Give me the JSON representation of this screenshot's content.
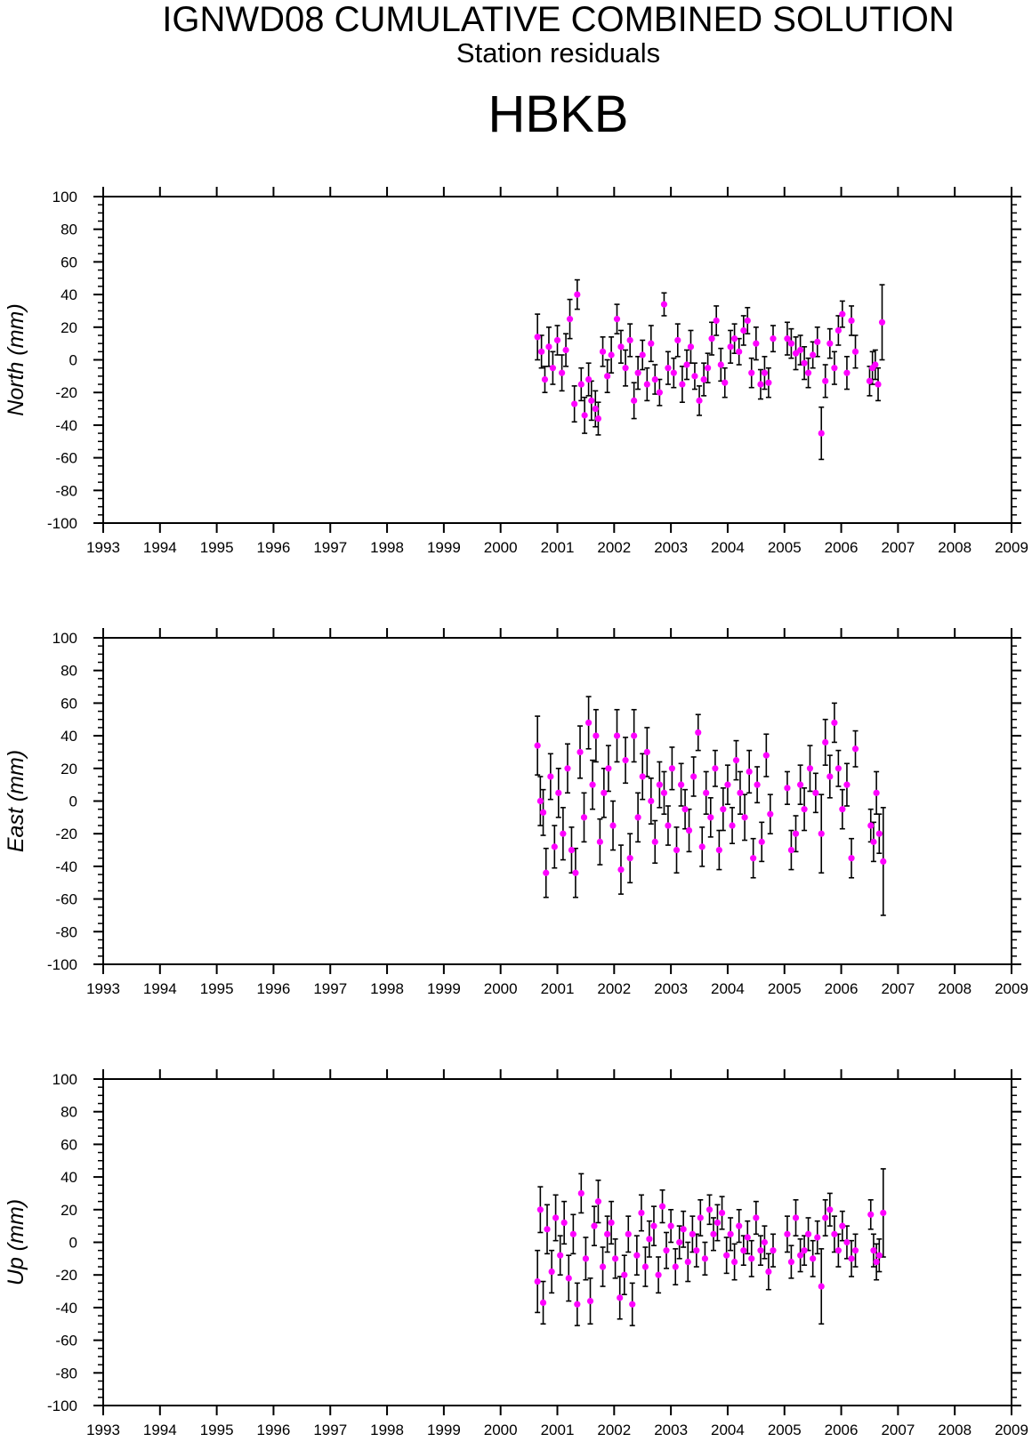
{
  "title": "IGNWD08 CUMULATIVE COMBINED SOLUTION",
  "subtitle": "Station residuals",
  "station": "HBKB",
  "colors": {
    "point": "#ff00ff",
    "errorbar": "#000000",
    "axis": "#000000"
  },
  "chart_data": [
    {
      "type": "scatter",
      "ylabel": "North (mm)",
      "xlim": [
        1993,
        2009
      ],
      "ylim": [
        -100,
        100
      ],
      "xticks": [
        "1993",
        "1994",
        "1995",
        "1996",
        "1997",
        "1998",
        "1999",
        "2000",
        "2001",
        "2002",
        "2003",
        "2004",
        "2005",
        "2006",
        "2007",
        "2008",
        "2009"
      ],
      "yticks": [
        "100",
        "80",
        "60",
        "40",
        "20",
        "0",
        "-20",
        "-40",
        "-60",
        "-80",
        "-100"
      ],
      "grid": false,
      "series": [
        {
          "x": [
            2000.65,
            2000.72,
            2000.78,
            2000.85,
            2000.92,
            2001.0,
            2001.08,
            2001.15,
            2001.22,
            2001.3,
            2001.35,
            2001.42,
            2001.48,
            2001.55,
            2001.6,
            2001.67,
            2001.72,
            2001.8,
            2001.88,
            2001.95,
            2002.05,
            2002.12,
            2002.2,
            2002.28,
            2002.35,
            2002.42,
            2002.5,
            2002.58,
            2002.65,
            2002.72,
            2002.8,
            2002.88,
            2002.95,
            2003.05,
            2003.12,
            2003.2,
            2003.28,
            2003.35,
            2003.42,
            2003.5,
            2003.58,
            2003.65,
            2003.72,
            2003.8,
            2003.88,
            2003.95,
            2004.05,
            2004.12,
            2004.2,
            2004.28,
            2004.35,
            2004.42,
            2004.5,
            2004.58,
            2004.65,
            2004.72,
            2004.8,
            2005.05,
            2005.12,
            2005.2,
            2005.28,
            2005.35,
            2005.42,
            2005.5,
            2005.58,
            2005.65,
            2005.72,
            2005.8,
            2005.88,
            2005.95,
            2006.02,
            2006.1,
            2006.18,
            2006.25,
            2006.5,
            2006.55,
            2006.6,
            2006.65,
            2006.72
          ],
          "y": [
            14,
            5,
            -12,
            8,
            -5,
            12,
            -8,
            6,
            25,
            -27,
            40,
            -15,
            -34,
            -12,
            -25,
            -30,
            -36,
            5,
            -10,
            3,
            25,
            8,
            -5,
            12,
            -25,
            -8,
            3,
            -15,
            10,
            -12,
            -20,
            34,
            -5,
            -8,
            12,
            -15,
            -3,
            8,
            -10,
            -25,
            -12,
            -5,
            13,
            24,
            -3,
            -14,
            8,
            13,
            5,
            18,
            24,
            -8,
            10,
            -15,
            -8,
            -14,
            13,
            13,
            10,
            4,
            6,
            -2,
            -8,
            3,
            11,
            -45,
            -13,
            10,
            -5,
            18,
            28,
            -8,
            24,
            5,
            -13,
            -5,
            -3,
            -15,
            23
          ],
          "err": [
            14,
            10,
            8,
            12,
            10,
            9,
            11,
            10,
            12,
            11,
            9,
            10,
            11,
            10,
            12,
            11,
            10,
            9,
            10,
            11,
            9,
            10,
            11,
            10,
            11,
            10,
            9,
            10,
            11,
            9,
            8,
            7,
            10,
            9,
            10,
            11,
            9,
            10,
            8,
            9,
            10,
            9,
            10,
            9,
            10,
            9,
            10,
            9,
            8,
            9,
            8,
            9,
            10,
            9,
            10,
            9,
            8,
            10,
            9,
            10,
            9,
            10,
            9,
            8,
            9,
            16,
            10,
            9,
            10,
            9,
            8,
            10,
            9,
            10,
            9,
            10,
            9,
            10,
            23
          ]
        }
      ]
    },
    {
      "type": "scatter",
      "ylabel": "East (mm)",
      "xlim": [
        1993,
        2009
      ],
      "ylim": [
        -100,
        100
      ],
      "xticks": [
        "1993",
        "1994",
        "1995",
        "1996",
        "1997",
        "1998",
        "1999",
        "2000",
        "2001",
        "2002",
        "2003",
        "2004",
        "2005",
        "2006",
        "2007",
        "2008",
        "2009"
      ],
      "yticks": [
        "100",
        "80",
        "60",
        "40",
        "20",
        "0",
        "-20",
        "-40",
        "-60",
        "-80",
        "-100"
      ],
      "grid": false,
      "series": [
        {
          "x": [
            2000.65,
            2000.7,
            2000.75,
            2000.8,
            2000.88,
            2000.95,
            2001.02,
            2001.1,
            2001.18,
            2001.25,
            2001.32,
            2001.4,
            2001.47,
            2001.55,
            2001.62,
            2001.68,
            2001.75,
            2001.82,
            2001.9,
            2001.98,
            2002.05,
            2002.12,
            2002.2,
            2002.28,
            2002.35,
            2002.42,
            2002.5,
            2002.58,
            2002.65,
            2002.72,
            2002.8,
            2002.88,
            2002.95,
            2003.02,
            2003.1,
            2003.18,
            2003.25,
            2003.32,
            2003.4,
            2003.48,
            2003.55,
            2003.62,
            2003.7,
            2003.78,
            2003.85,
            2003.92,
            2004.0,
            2004.08,
            2004.15,
            2004.22,
            2004.3,
            2004.38,
            2004.45,
            2004.52,
            2004.6,
            2004.68,
            2004.75,
            2005.05,
            2005.12,
            2005.2,
            2005.28,
            2005.35,
            2005.45,
            2005.55,
            2005.65,
            2005.72,
            2005.8,
            2005.88,
            2005.95,
            2006.02,
            2006.1,
            2006.18,
            2006.25,
            2006.52,
            2006.57,
            2006.62,
            2006.67,
            2006.74
          ],
          "y": [
            34,
            0,
            -7,
            -44,
            15,
            -28,
            5,
            -20,
            20,
            -30,
            -44,
            30,
            -10,
            48,
            10,
            40,
            -25,
            5,
            20,
            -15,
            40,
            -42,
            25,
            -35,
            40,
            -10,
            15,
            30,
            0,
            -25,
            10,
            5,
            -15,
            20,
            -30,
            10,
            -5,
            -18,
            15,
            42,
            -28,
            5,
            -10,
            20,
            -30,
            -5,
            10,
            -15,
            25,
            5,
            -10,
            18,
            -35,
            10,
            -25,
            28,
            -8,
            8,
            -30,
            -20,
            10,
            -5,
            20,
            5,
            -20,
            36,
            15,
            48,
            20,
            -5,
            10,
            -35,
            32,
            -15,
            -25,
            5,
            -20,
            -37
          ],
          "err": [
            18,
            15,
            14,
            15,
            14,
            13,
            15,
            16,
            15,
            14,
            15,
            16,
            15,
            16,
            15,
            16,
            14,
            15,
            14,
            15,
            16,
            15,
            14,
            15,
            16,
            15,
            14,
            15,
            14,
            13,
            14,
            13,
            12,
            13,
            14,
            13,
            12,
            13,
            12,
            11,
            12,
            13,
            12,
            11,
            12,
            13,
            12,
            11,
            12,
            13,
            14,
            13,
            12,
            11,
            12,
            13,
            12,
            10,
            12,
            11,
            12,
            13,
            14,
            12,
            24,
            14,
            13,
            12,
            11,
            12,
            13,
            12,
            11,
            10,
            12,
            13,
            12,
            33
          ]
        }
      ]
    },
    {
      "type": "scatter",
      "ylabel": "Up (mm)",
      "xlim": [
        1993,
        2009
      ],
      "ylim": [
        -100,
        100
      ],
      "xticks": [
        "1993",
        "1994",
        "1995",
        "1996",
        "1997",
        "1998",
        "1999",
        "2000",
        "2001",
        "2002",
        "2003",
        "2004",
        "2005",
        "2006",
        "2007",
        "2008",
        "2009"
      ],
      "yticks": [
        "100",
        "80",
        "60",
        "40",
        "20",
        "0",
        "-20",
        "-40",
        "-60",
        "-80",
        "-100"
      ],
      "grid": false,
      "series": [
        {
          "x": [
            2000.65,
            2000.7,
            2000.75,
            2000.82,
            2000.9,
            2000.97,
            2001.05,
            2001.12,
            2001.2,
            2001.28,
            2001.35,
            2001.42,
            2001.5,
            2001.58,
            2001.65,
            2001.72,
            2001.8,
            2001.88,
            2001.95,
            2002.02,
            2002.1,
            2002.18,
            2002.25,
            2002.32,
            2002.4,
            2002.48,
            2002.55,
            2002.62,
            2002.7,
            2002.78,
            2002.85,
            2002.92,
            2003.0,
            2003.08,
            2003.15,
            2003.22,
            2003.3,
            2003.38,
            2003.45,
            2003.52,
            2003.6,
            2003.68,
            2003.75,
            2003.82,
            2003.9,
            2003.98,
            2004.05,
            2004.12,
            2004.2,
            2004.28,
            2004.35,
            2004.42,
            2004.5,
            2004.58,
            2004.65,
            2004.72,
            2004.8,
            2005.05,
            2005.12,
            2005.2,
            2005.28,
            2005.35,
            2005.42,
            2005.5,
            2005.58,
            2005.65,
            2005.72,
            2005.8,
            2005.88,
            2005.95,
            2006.02,
            2006.1,
            2006.18,
            2006.25,
            2006.52,
            2006.57,
            2006.62,
            2006.67,
            2006.74
          ],
          "y": [
            -24,
            20,
            -37,
            8,
            -18,
            15,
            -8,
            12,
            -22,
            5,
            -38,
            30,
            -10,
            -36,
            10,
            25,
            -15,
            5,
            12,
            -10,
            -34,
            -20,
            5,
            -38,
            -8,
            18,
            -15,
            2,
            10,
            -20,
            22,
            -5,
            10,
            -15,
            0,
            8,
            -12,
            5,
            -5,
            15,
            -10,
            20,
            5,
            12,
            18,
            -8,
            5,
            -12,
            10,
            -5,
            3,
            -10,
            15,
            -5,
            0,
            -18,
            -5,
            5,
            -12,
            15,
            -8,
            -5,
            5,
            -10,
            3,
            -27,
            15,
            20,
            5,
            -5,
            10,
            0,
            -10,
            -5,
            17,
            -5,
            -12,
            -8,
            18
          ],
          "err": [
            19,
            14,
            13,
            15,
            13,
            14,
            12,
            13,
            14,
            12,
            13,
            12,
            13,
            14,
            12,
            13,
            12,
            11,
            13,
            12,
            13,
            12,
            11,
            13,
            12,
            11,
            12,
            11,
            12,
            11,
            10,
            11,
            10,
            11,
            10,
            11,
            12,
            11,
            10,
            11,
            10,
            9,
            10,
            11,
            10,
            11,
            10,
            11,
            10,
            9,
            10,
            11,
            10,
            9,
            10,
            11,
            10,
            11,
            10,
            11,
            10,
            9,
            10,
            11,
            10,
            23,
            11,
            10,
            11,
            10,
            9,
            10,
            11,
            10,
            9,
            10,
            11,
            10,
            27
          ]
        }
      ]
    }
  ]
}
